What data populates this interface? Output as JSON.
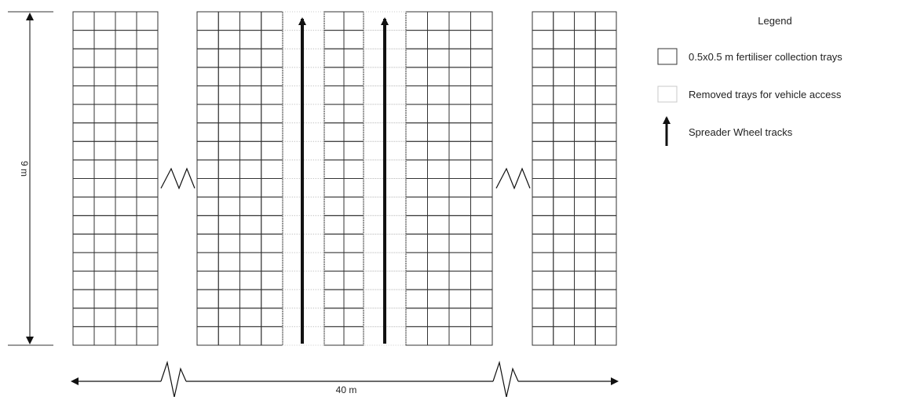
{
  "diagram": {
    "height_label": "9 m",
    "width_label": "40 m",
    "rows": 18,
    "tray_columns_per_block": 4,
    "legend": {
      "title": "Legend",
      "items": [
        {
          "label": "0.5x0.5 m fertiliser collection trays",
          "symbol": "tray-square-icon"
        },
        {
          "label": "Removed trays for vehicle access",
          "symbol": "removed-tray-square-icon"
        },
        {
          "label": "Spreader Wheel tracks",
          "symbol": "arrow-up-icon"
        }
      ]
    },
    "colors": {
      "grid": "#333333",
      "removed": "#c8c8c8",
      "track": "#111111",
      "text": "#222222"
    }
  }
}
